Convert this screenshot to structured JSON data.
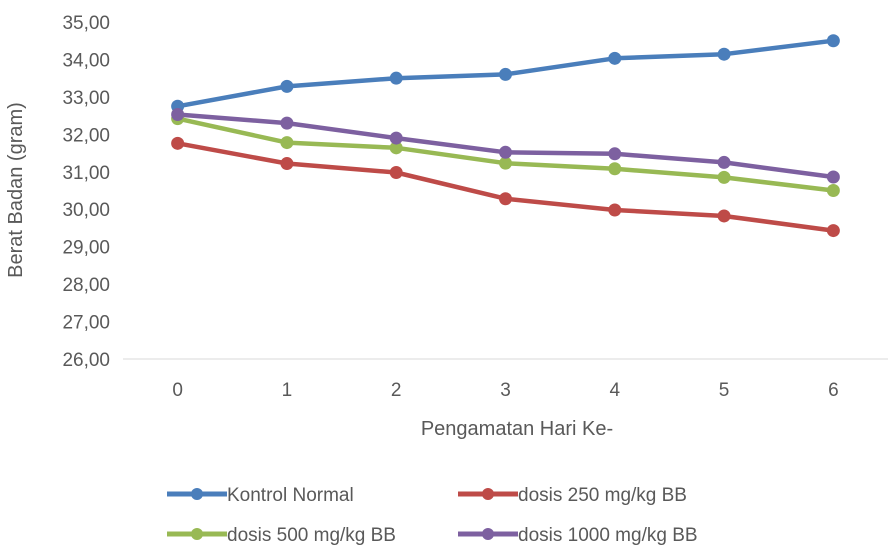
{
  "chart_data": {
    "type": "line",
    "title": "",
    "xlabel": "Pengamatan Hari Ke-",
    "ylabel": "Berat Badan (gram)",
    "categories": [
      "0",
      "1",
      "2",
      "3",
      "4",
      "5",
      "6"
    ],
    "ylim": [
      26,
      35
    ],
    "yticks": [
      "26,00",
      "27,00",
      "28,00",
      "29,00",
      "30,00",
      "31,00",
      "32,00",
      "33,00",
      "34,00",
      "35,00"
    ],
    "grid": false,
    "legend_position": "bottom",
    "series": [
      {
        "name": "Kontrol Normal",
        "color": "#4a7ebb",
        "values": [
          32.75,
          33.28,
          33.5,
          33.6,
          34.03,
          34.14,
          34.5
        ]
      },
      {
        "name": "dosis 250 mg/kg BB",
        "color": "#be4b48",
        "values": [
          31.76,
          31.22,
          30.98,
          30.28,
          29.98,
          29.82,
          29.43
        ]
      },
      {
        "name": "dosis 500 mg/kg BB",
        "color": "#98b954",
        "values": [
          32.42,
          31.78,
          31.64,
          31.23,
          31.08,
          30.85,
          30.5
        ]
      },
      {
        "name": "dosis 1000 mg/kg BB",
        "color": "#7d60a0",
        "values": [
          32.53,
          32.3,
          31.9,
          31.52,
          31.48,
          31.25,
          30.86
        ]
      }
    ]
  }
}
